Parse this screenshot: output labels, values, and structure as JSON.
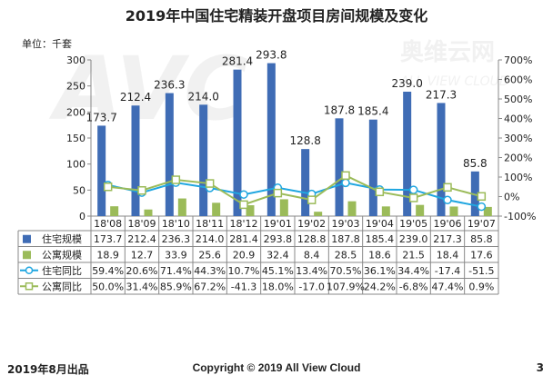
{
  "page": {
    "title": "2019年中国住宅精装开盘项目房间规模及变化",
    "unit": "单位：千套",
    "footer_left": "2019年8月出品",
    "footer_center": "Copyright © 2019  All View Cloud",
    "page_number": "3"
  },
  "watermark": {
    "brand": "AVC",
    "brand_cn": "奥维云网",
    "tagline": "ALL VIEW CLOUD"
  },
  "chart_data": {
    "type": "bar",
    "categories": [
      "18'08",
      "18'09",
      "18'10",
      "18'11",
      "18'12",
      "19'01",
      "19'02",
      "19'03",
      "19'04",
      "19'05",
      "19'06",
      "19'07"
    ],
    "series": [
      {
        "name": "住宅规模",
        "type": "bar",
        "axis": "left",
        "color": "#3f6cb5",
        "values": [
          173.7,
          212.4,
          236.3,
          214.0,
          281.4,
          293.8,
          128.8,
          187.8,
          185.4,
          239.0,
          217.3,
          85.8
        ],
        "labels": [
          "173.7",
          "212.4",
          "236.3",
          "214.0",
          "281.4",
          "293.8",
          "128.8",
          "187.8",
          "185.4",
          "239.0",
          "217.3",
          "85.8"
        ],
        "show_labels": true
      },
      {
        "name": "公寓规模",
        "type": "bar",
        "axis": "left",
        "color": "#9bbb59",
        "values": [
          18.9,
          12.7,
          33.9,
          25.6,
          20.9,
          32.4,
          8.4,
          28.5,
          18.6,
          21.5,
          18.4,
          17.6
        ],
        "labels": [
          "18.9",
          "12.7",
          "33.9",
          "25.6",
          "20.9",
          "32.4",
          "8.4",
          "28.5",
          "18.6",
          "21.5",
          "18.4",
          "17.6"
        ],
        "show_labels": false
      },
      {
        "name": "住宅同比",
        "type": "line",
        "axis": "right",
        "color": "#1fa6e0",
        "values": [
          59.4,
          20.6,
          71.4,
          44.3,
          10.7,
          45.1,
          13.4,
          70.5,
          36.1,
          34.4,
          -17.4,
          -51.5
        ],
        "labels": [
          "59.4%",
          "20.6%",
          "71.4%",
          "44.3%",
          "10.7%",
          "45.1%",
          "13.4%",
          "70.5%",
          "36.1%",
          "34.4%",
          "-17.4",
          "-51.5"
        ]
      },
      {
        "name": "公寓同比",
        "type": "line",
        "axis": "right",
        "color": "#9bbb59",
        "values": [
          50.0,
          31.4,
          85.9,
          67.2,
          -41.3,
          18.0,
          -17.0,
          107.9,
          24.2,
          -6.8,
          47.4,
          0.9
        ],
        "labels": [
          "50.0%",
          "31.4%",
          "85.9%",
          "67.2%",
          "-41.3",
          "18.0%",
          "-17.0",
          "107.9%",
          "24.2%",
          "-6.8%",
          "47.4%",
          "0.9%"
        ]
      }
    ],
    "y_left": {
      "min": 0,
      "max": 300,
      "ticks": [
        "0",
        "50",
        "100",
        "150",
        "200",
        "250",
        "300"
      ]
    },
    "y_right": {
      "min": -100,
      "max": 700,
      "ticks": [
        "-100%",
        "0%",
        "100%",
        "200%",
        "300%",
        "400%",
        "500%",
        "600%",
        "700%"
      ]
    },
    "grid": false,
    "legend": "data-table"
  }
}
